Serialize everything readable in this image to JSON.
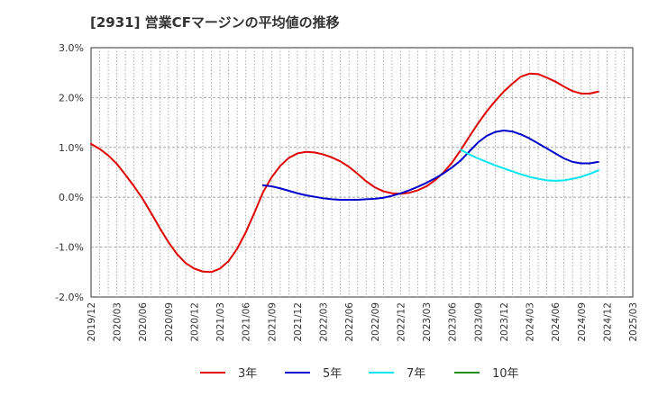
{
  "chart_data": {
    "type": "line",
    "title": "[2931]  営業CFマージンの平均値の推移",
    "xlabel": "",
    "ylabel": "",
    "ylim": [
      -2.0,
      3.0
    ],
    "yticks": [
      "3.0%",
      "2.0%",
      "1.0%",
      "0.0%",
      "-1.0%",
      "-2.0%"
    ],
    "ytick_values": [
      3.0,
      2.0,
      1.0,
      0.0,
      -1.0,
      -2.0
    ],
    "x": [
      "2019/12",
      "2020/03",
      "2020/06",
      "2020/09",
      "2020/12",
      "2021/03",
      "2021/06",
      "2021/09",
      "2021/12",
      "2022/03",
      "2022/06",
      "2022/09",
      "2022/12",
      "2023/03",
      "2023/06",
      "2023/09",
      "2023/12",
      "2024/03",
      "2024/06",
      "2024/09",
      "2024/12",
      "2025/03"
    ],
    "grid": true,
    "legend_position": "bottom",
    "series": [
      {
        "name": "3年",
        "color": "#e00000",
        "points": [
          [
            "2019/12",
            1.07
          ],
          [
            "2020/01",
            0.97
          ],
          [
            "2020/02",
            0.84
          ],
          [
            "2020/03",
            0.67
          ],
          [
            "2020/04",
            0.45
          ],
          [
            "2020/05",
            0.22
          ],
          [
            "2020/06",
            -0.03
          ],
          [
            "2020/07",
            -0.32
          ],
          [
            "2020/08",
            -0.62
          ],
          [
            "2020/09",
            -0.9
          ],
          [
            "2020/10",
            -1.14
          ],
          [
            "2020/11",
            -1.32
          ],
          [
            "2020/12",
            -1.43
          ],
          [
            "2021/01",
            -1.49
          ],
          [
            "2021/02",
            -1.5
          ],
          [
            "2021/03",
            -1.43
          ],
          [
            "2021/04",
            -1.28
          ],
          [
            "2021/05",
            -1.03
          ],
          [
            "2021/06",
            -0.7
          ],
          [
            "2021/07",
            -0.31
          ],
          [
            "2021/08",
            0.1
          ],
          [
            "2021/09",
            0.4
          ],
          [
            "2021/10",
            0.63
          ],
          [
            "2021/11",
            0.79
          ],
          [
            "2021/12",
            0.88
          ],
          [
            "2022/01",
            0.91
          ],
          [
            "2022/02",
            0.9
          ],
          [
            "2022/03",
            0.86
          ],
          [
            "2022/04",
            0.8
          ],
          [
            "2022/05",
            0.72
          ],
          [
            "2022/06",
            0.61
          ],
          [
            "2022/07",
            0.47
          ],
          [
            "2022/08",
            0.32
          ],
          [
            "2022/09",
            0.2
          ],
          [
            "2022/10",
            0.12
          ],
          [
            "2022/11",
            0.08
          ],
          [
            "2022/12",
            0.07
          ],
          [
            "2023/01",
            0.09
          ],
          [
            "2023/02",
            0.14
          ],
          [
            "2023/03",
            0.22
          ],
          [
            "2023/04",
            0.34
          ],
          [
            "2023/05",
            0.5
          ],
          [
            "2023/06",
            0.7
          ],
          [
            "2023/07",
            0.95
          ],
          [
            "2023/08",
            1.22
          ],
          [
            "2023/09",
            1.48
          ],
          [
            "2023/10",
            1.72
          ],
          [
            "2023/11",
            1.93
          ],
          [
            "2023/12",
            2.12
          ],
          [
            "2024/01",
            2.28
          ],
          [
            "2024/02",
            2.42
          ],
          [
            "2024/03",
            2.48
          ],
          [
            "2024/04",
            2.47
          ],
          [
            "2024/05",
            2.4
          ],
          [
            "2024/06",
            2.32
          ],
          [
            "2024/07",
            2.22
          ],
          [
            "2024/08",
            2.13
          ],
          [
            "2024/09",
            2.08
          ],
          [
            "2024/10",
            2.08
          ],
          [
            "2024/11",
            2.12
          ]
        ]
      },
      {
        "name": "5年",
        "color": "#0000cc",
        "points": [
          [
            "2021/08",
            0.24
          ],
          [
            "2021/09",
            0.22
          ],
          [
            "2021/10",
            0.18
          ],
          [
            "2021/11",
            0.13
          ],
          [
            "2021/12",
            0.08
          ],
          [
            "2022/01",
            0.04
          ],
          [
            "2022/02",
            0.01
          ],
          [
            "2022/03",
            -0.02
          ],
          [
            "2022/04",
            -0.04
          ],
          [
            "2022/05",
            -0.05
          ],
          [
            "2022/06",
            -0.05
          ],
          [
            "2022/07",
            -0.05
          ],
          [
            "2022/08",
            -0.04
          ],
          [
            "2022/09",
            -0.03
          ],
          [
            "2022/10",
            -0.01
          ],
          [
            "2022/11",
            0.03
          ],
          [
            "2022/12",
            0.08
          ],
          [
            "2023/01",
            0.14
          ],
          [
            "2023/02",
            0.21
          ],
          [
            "2023/03",
            0.29
          ],
          [
            "2023/04",
            0.38
          ],
          [
            "2023/05",
            0.48
          ],
          [
            "2023/06",
            0.6
          ],
          [
            "2023/07",
            0.74
          ],
          [
            "2023/08",
            0.92
          ],
          [
            "2023/09",
            1.1
          ],
          [
            "2023/10",
            1.23
          ],
          [
            "2023/11",
            1.31
          ],
          [
            "2023/12",
            1.34
          ],
          [
            "2024/01",
            1.32
          ],
          [
            "2024/02",
            1.26
          ],
          [
            "2024/03",
            1.18
          ],
          [
            "2024/04",
            1.08
          ],
          [
            "2024/05",
            0.98
          ],
          [
            "2024/06",
            0.88
          ],
          [
            "2024/07",
            0.78
          ],
          [
            "2024/08",
            0.71
          ],
          [
            "2024/09",
            0.68
          ],
          [
            "2024/10",
            0.68
          ],
          [
            "2024/11",
            0.71
          ]
        ]
      },
      {
        "name": "7年",
        "color": "#00e5ee",
        "points": [
          [
            "2023/07",
            0.95
          ],
          [
            "2023/08",
            0.86
          ],
          [
            "2023/09",
            0.78
          ],
          [
            "2023/10",
            0.71
          ],
          [
            "2023/11",
            0.64
          ],
          [
            "2023/12",
            0.58
          ],
          [
            "2024/01",
            0.52
          ],
          [
            "2024/02",
            0.46
          ],
          [
            "2024/03",
            0.41
          ],
          [
            "2024/04",
            0.37
          ],
          [
            "2024/05",
            0.34
          ],
          [
            "2024/06",
            0.33
          ],
          [
            "2024/07",
            0.34
          ],
          [
            "2024/08",
            0.37
          ],
          [
            "2024/09",
            0.41
          ],
          [
            "2024/10",
            0.47
          ],
          [
            "2024/11",
            0.54
          ]
        ]
      },
      {
        "name": "10年",
        "color": "#228b22",
        "points": []
      }
    ]
  }
}
